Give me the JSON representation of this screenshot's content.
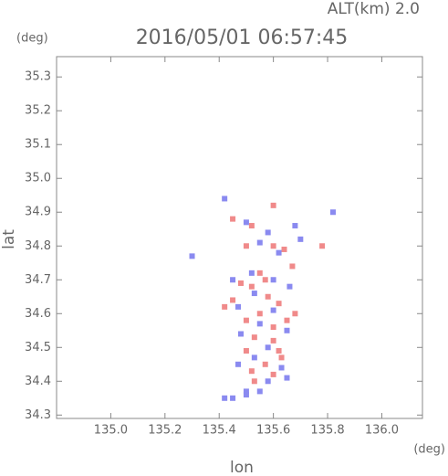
{
  "chart_data": {
    "type": "scatter",
    "title": "2016/05/01 06:57:45",
    "subtitle": "ALT(km) 2.0",
    "x_label": "lon",
    "y_label": "lat",
    "x_unit": "(deg)",
    "y_unit": "(deg)",
    "xlim": [
      134.8,
      136.15
    ],
    "ylim": [
      34.29,
      35.36
    ],
    "xticks": [
      {
        "value": 135,
        "label": "135.0"
      },
      135.2,
      135.4,
      135.6,
      135.8,
      {
        "value": 136,
        "label": "136.0"
      }
    ],
    "yticks": [
      34.3,
      34.4,
      34.5,
      34.6,
      34.7,
      34.8,
      34.9,
      {
        "value": 35,
        "label": "35.0"
      },
      35.1,
      35.2,
      35.3
    ],
    "series": [
      {
        "color": "#f08a8a",
        "x": [
          135.6,
          135.45,
          135.52,
          135.6,
          135.78,
          135.67,
          135.55,
          135.48,
          135.52,
          135.58,
          135.62,
          135.55,
          135.5,
          135.6,
          135.65,
          135.53,
          135.6,
          135.5,
          135.63,
          135.57,
          135.52,
          135.6,
          135.53,
          135.62,
          135.45,
          135.68,
          135.42,
          135.57,
          135.64,
          135.5
        ],
        "values": [
          34.92,
          34.88,
          34.86,
          34.8,
          34.8,
          34.74,
          34.72,
          34.69,
          34.68,
          34.65,
          34.63,
          34.6,
          34.58,
          34.56,
          34.58,
          34.53,
          34.52,
          34.49,
          34.47,
          34.45,
          34.43,
          34.42,
          34.4,
          34.49,
          34.64,
          34.6,
          34.62,
          34.7,
          34.79,
          34.8
        ]
      },
      {
        "color": "#8a8af0",
        "x": [
          135.82,
          135.42,
          135.5,
          135.58,
          135.68,
          135.3,
          135.55,
          135.62,
          135.45,
          135.6,
          135.53,
          135.47,
          135.6,
          135.55,
          135.65,
          135.48,
          135.58,
          135.53,
          135.63,
          135.47,
          135.58,
          135.65,
          135.5,
          135.45,
          135.5,
          135.55,
          135.42,
          135.52,
          135.66,
          135.7
        ],
        "values": [
          34.9,
          34.94,
          34.87,
          34.84,
          34.86,
          34.77,
          34.81,
          34.78,
          34.7,
          34.7,
          34.66,
          34.62,
          34.61,
          34.57,
          34.55,
          34.54,
          34.5,
          34.47,
          34.44,
          34.45,
          34.4,
          34.41,
          34.37,
          34.35,
          34.36,
          34.37,
          34.35,
          34.72,
          34.68,
          34.82
        ]
      }
    ]
  }
}
